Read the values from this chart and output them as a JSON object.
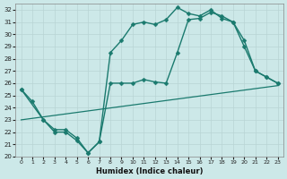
{
  "xlabel": "Humidex (Indice chaleur)",
  "xlim": [
    -0.5,
    23.5
  ],
  "ylim": [
    20,
    32.5
  ],
  "yticks": [
    20,
    21,
    22,
    23,
    24,
    25,
    26,
    27,
    28,
    29,
    30,
    31,
    32
  ],
  "xticks": [
    0,
    1,
    2,
    3,
    4,
    5,
    6,
    7,
    8,
    9,
    10,
    11,
    12,
    13,
    14,
    15,
    16,
    17,
    18,
    19,
    20,
    21,
    22,
    23
  ],
  "bg_color": "#cce8e8",
  "line_color": "#1a7a6e",
  "grid_color": "#b8d4d4",
  "lines": [
    {
      "x": [
        0,
        1,
        2,
        3,
        4,
        5,
        6,
        7,
        8,
        9,
        10,
        11,
        12,
        13,
        14,
        15,
        16,
        17,
        18,
        19,
        20,
        21,
        22,
        23
      ],
      "y": [
        25.5,
        24.5,
        23.0,
        22.2,
        22.2,
        21.5,
        20.3,
        21.2,
        28.5,
        29.5,
        30.8,
        31.0,
        30.8,
        31.2,
        32.2,
        31.7,
        31.5,
        32.0,
        31.3,
        31.0,
        29.0,
        27.0,
        26.5,
        26.0
      ],
      "marker": "D",
      "markersize": 2.5,
      "linewidth": 1.0
    },
    {
      "x": [
        0,
        2,
        3,
        4,
        5,
        6,
        7,
        8,
        9,
        10,
        11,
        12,
        13,
        14,
        15,
        16,
        17,
        18,
        19,
        20,
        21,
        22,
        23
      ],
      "y": [
        25.5,
        23.0,
        22.0,
        22.0,
        21.3,
        20.3,
        21.2,
        26.0,
        26.0,
        26.0,
        26.3,
        26.1,
        26.0,
        28.5,
        31.2,
        31.3,
        31.8,
        31.5,
        31.0,
        29.5,
        27.0,
        26.5,
        26.0
      ],
      "marker": "D",
      "markersize": 2.5,
      "linewidth": 1.0
    },
    {
      "x": [
        0,
        23
      ],
      "y": [
        23.0,
        25.8
      ],
      "marker": null,
      "linewidth": 0.9
    }
  ]
}
